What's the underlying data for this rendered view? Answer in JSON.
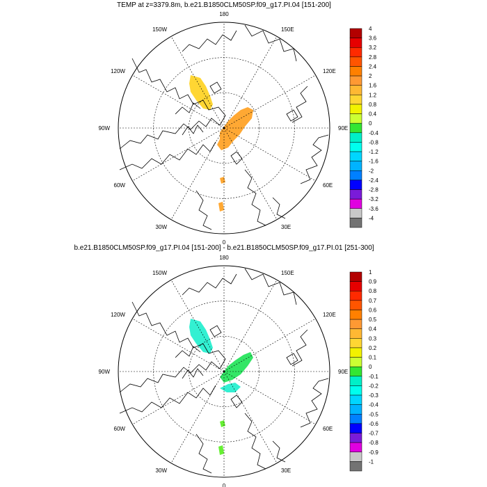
{
  "panels": [
    {
      "title": "TEMP at z=3379.8m, b.e21.B1850CLM50SP.f09_g17.PI.04 [151-200]",
      "lon_labels": [
        "180",
        "150E",
        "120E",
        "90E",
        "60E",
        "30E",
        "0",
        "30W",
        "60W",
        "90W",
        "120W",
        "150W"
      ],
      "colorbar": {
        "labels": [
          "4",
          "3.6",
          "3.2",
          "2.8",
          "2.4",
          "2",
          "1.6",
          "1.2",
          "0.8",
          "0.4",
          "0",
          "-0.4",
          "-0.8",
          "-1.2",
          "-1.6",
          "-2",
          "-2.4",
          "-2.8",
          "-3.2",
          "-3.6",
          "-4"
        ],
        "colors": [
          "#b30000",
          "#e60000",
          "#ff2a00",
          "#ff5500",
          "#ff8000",
          "#ff9933",
          "#ffb833",
          "#ffd633",
          "#f2f200",
          "#ccff33",
          "#33e633",
          "#00f0c8",
          "#00ffee",
          "#00d6ff",
          "#00b3ff",
          "#0080ff",
          "#0000ff",
          "#7a1bd9",
          "#e000e0",
          "#c8c8c8",
          "#737373"
        ]
      },
      "features": [
        {
          "name": "warm-anomaly-north-america",
          "color": "#ffd633"
        },
        {
          "name": "warm-anomaly-arctic-ocean",
          "color": "#ffa833"
        },
        {
          "name": "warm-anomaly-north-atlantic",
          "color": "#ffa833"
        },
        {
          "name": "warm-anomaly-atlantic-patch",
          "color": "#ffa833"
        }
      ]
    },
    {
      "title": "b.e21.B1850CLM50SP.f09_g17.PI.04 [151-200] - b.e21.B1850CLM50SP.f09_g17.PI.01 [251-300]",
      "lon_labels": [
        "180",
        "150E",
        "120E",
        "90E",
        "60E",
        "30E",
        "0",
        "30W",
        "60W",
        "90W",
        "120W",
        "150W"
      ],
      "colorbar": {
        "labels": [
          "1",
          "0.9",
          "0.8",
          "0.7",
          "0.6",
          "0.5",
          "0.4",
          "0.3",
          "0.2",
          "0.1",
          "0",
          "-0.1",
          "-0.2",
          "-0.3",
          "-0.4",
          "-0.5",
          "-0.6",
          "-0.7",
          "-0.8",
          "-0.9",
          "-1"
        ],
        "colors": [
          "#b30000",
          "#e60000",
          "#ff2a00",
          "#ff5500",
          "#ff8000",
          "#ff9933",
          "#ffb833",
          "#ffd633",
          "#f2f200",
          "#ccff33",
          "#33e633",
          "#00f0c8",
          "#00ffee",
          "#00d6ff",
          "#00b3ff",
          "#0080ff",
          "#0000ff",
          "#7a1bd9",
          "#e000e0",
          "#c8c8c8",
          "#737373"
        ]
      },
      "features": [
        {
          "name": "diff-north-america",
          "color": "#33f0d2"
        },
        {
          "name": "diff-arctic-ocean",
          "color": "#33e666"
        },
        {
          "name": "diff-arctic-ocean-cool",
          "color": "#33f0d2"
        },
        {
          "name": "diff-north-atlantic",
          "color": "#66f033"
        },
        {
          "name": "diff-atlantic-patch",
          "color": "#66f033"
        }
      ]
    }
  ]
}
